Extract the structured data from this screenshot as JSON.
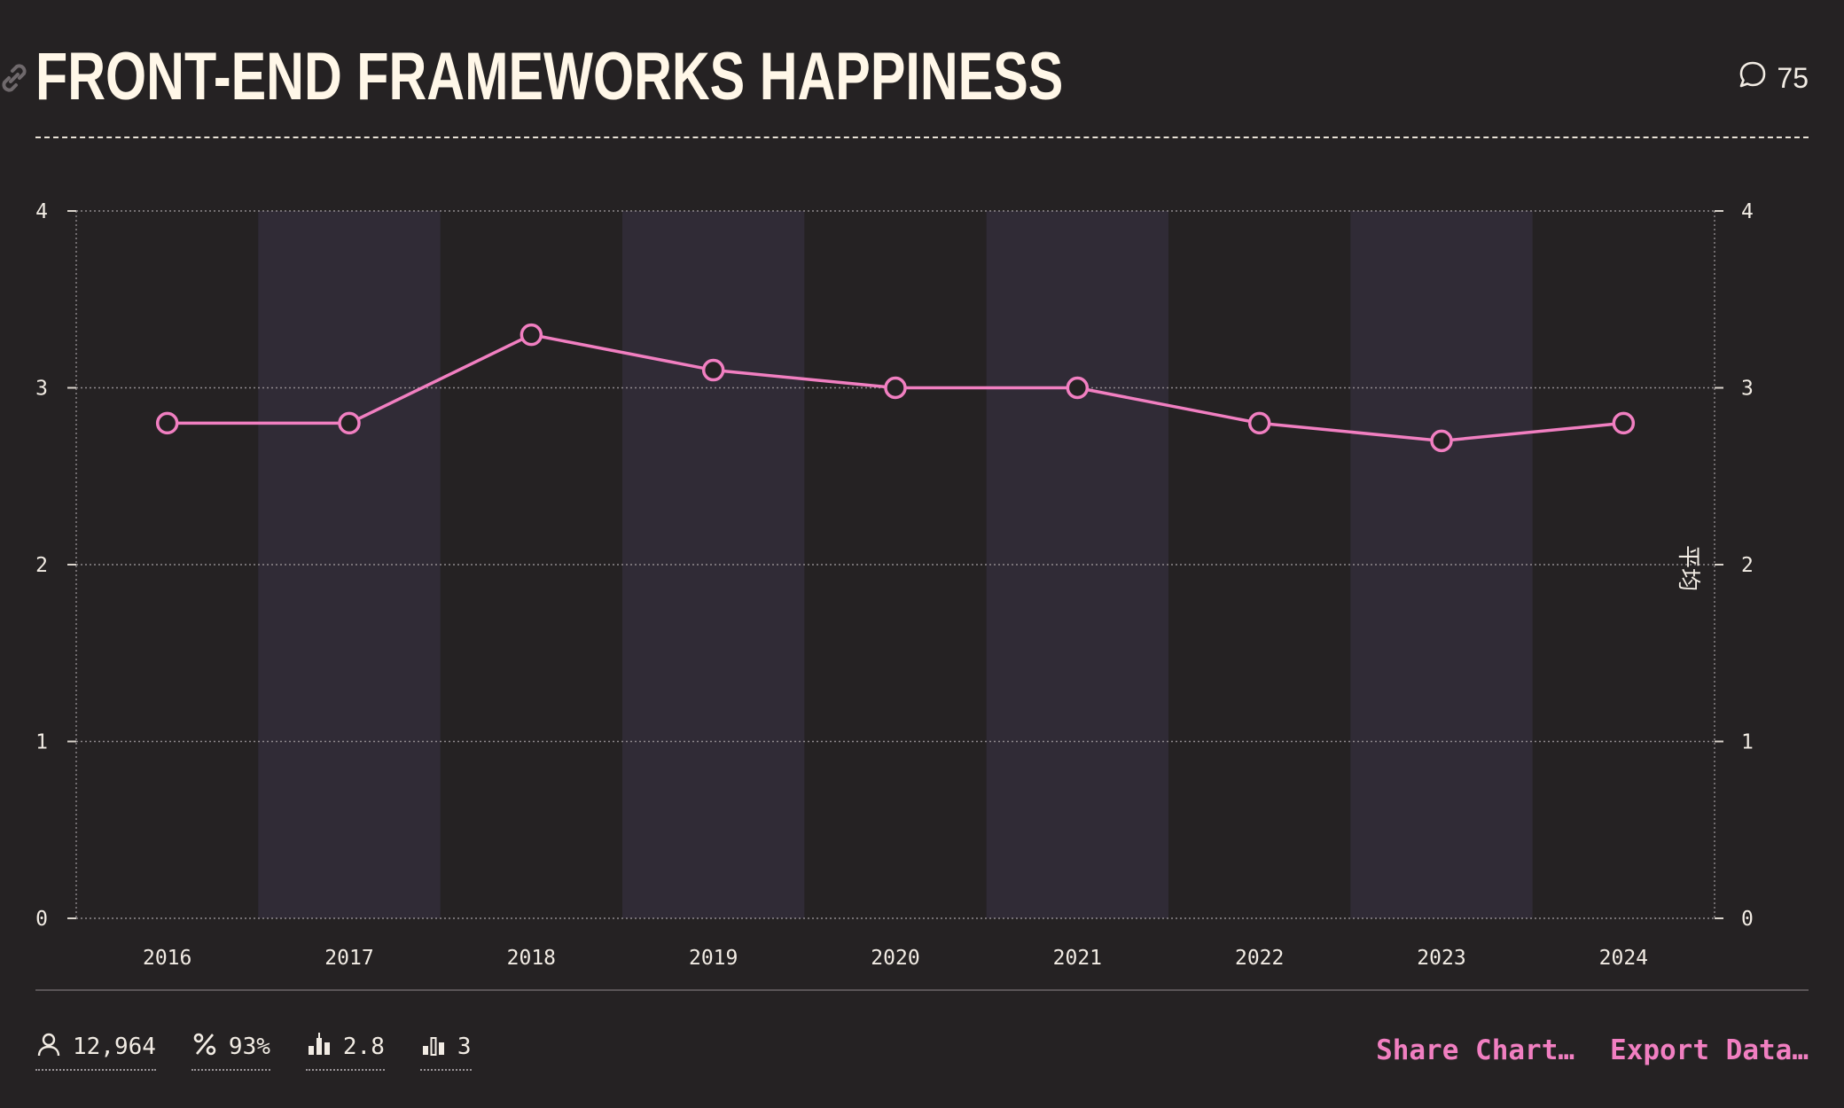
{
  "header": {
    "title": "FRONT-END FRAMEWORKS HAPPINESS",
    "comment_count": "75"
  },
  "chart_data": {
    "type": "line",
    "title": "FRONT-END FRAMEWORKS HAPPINESS",
    "categories": [
      "2016",
      "2017",
      "2018",
      "2019",
      "2020",
      "2021",
      "2022",
      "2023",
      "2024"
    ],
    "series": [
      {
        "values": [
          2.8,
          2.8,
          3.3,
          3.1,
          3.0,
          3.0,
          2.8,
          2.7,
          2.8
        ],
        "color": "#f17fc1"
      }
    ],
    "ylim": [
      0,
      4
    ],
    "yticks": [
      "0",
      "1",
      "2",
      "3",
      "4"
    ],
    "ylabel_right": "平均",
    "alternating_column_shading": true,
    "grid": true
  },
  "stats": {
    "respondents": "12,964",
    "percent": "93%",
    "average": "2.8",
    "median": "3"
  },
  "actions": {
    "share_label": "Share Chart…",
    "export_label": "Export Data…"
  },
  "colors": {
    "background": "#252223",
    "band": "#302b36",
    "accent": "#f17fc1",
    "text": "#f2ece4",
    "title": "#fff7e8"
  }
}
